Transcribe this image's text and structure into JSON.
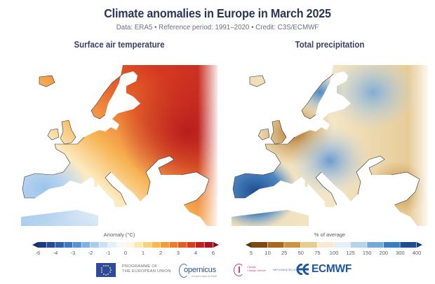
{
  "header": {
    "title": "Climate anomalies in Europe in March 2025",
    "subtitle": "Data: ERA5 • Reference period: 1991–2020 • Credit: C3S/ECMWF"
  },
  "panels": [
    {
      "title": "Surface air temperature",
      "variable": "temperature",
      "colorbar": {
        "label": "Anomaly (°C)",
        "ticks": [
          "-6",
          "-4",
          "-3",
          "-2",
          "-1",
          "0",
          "1",
          "2",
          "3",
          "4",
          "6"
        ],
        "colors": [
          "#1d3a7c",
          "#244a95",
          "#2f5fae",
          "#3f77c0",
          "#5c93d0",
          "#80b2e0",
          "#a6cdee",
          "#c8e1f5",
          "#e3eff9",
          "#f4f7fb",
          "#fef6e2",
          "#fde7ad",
          "#fbd27a",
          "#f8b84c",
          "#f59b33",
          "#ef7d2a",
          "#e55b25",
          "#d83a22",
          "#c61f22",
          "#a8141d"
        ],
        "extend": "both",
        "min_color": "#1a2f66",
        "max_color": "#8c1018"
      }
    },
    {
      "title": "Total precipitation",
      "variable": "precipitation",
      "colorbar": {
        "label": "% of average",
        "ticks": [
          "5",
          "10",
          "25",
          "50",
          "75",
          "100",
          "125",
          "150",
          "200",
          "300",
          "400"
        ],
        "colors": [
          "#7a4a12",
          "#a8691f",
          "#c99545",
          "#e7cc8c",
          "#f6ead2",
          "#e6eef7",
          "#b5d3ec",
          "#75a9d8",
          "#3a7cc0",
          "#1f4d93"
        ],
        "extend": "both",
        "min_color": "#5e380d",
        "max_color": "#173a73"
      }
    }
  ],
  "footer": {
    "eu_programme": [
      "PROGRAMME OF",
      "THE EUROPEAN UNION"
    ],
    "copernicus": "opernicus",
    "copernicus_sub": "Europe's eyes on Earth",
    "c3s": [
      "Climate",
      "Change Service"
    ],
    "implemented_by": "IMPLEMENTED BY",
    "ecmwf": "ECMWF"
  }
}
